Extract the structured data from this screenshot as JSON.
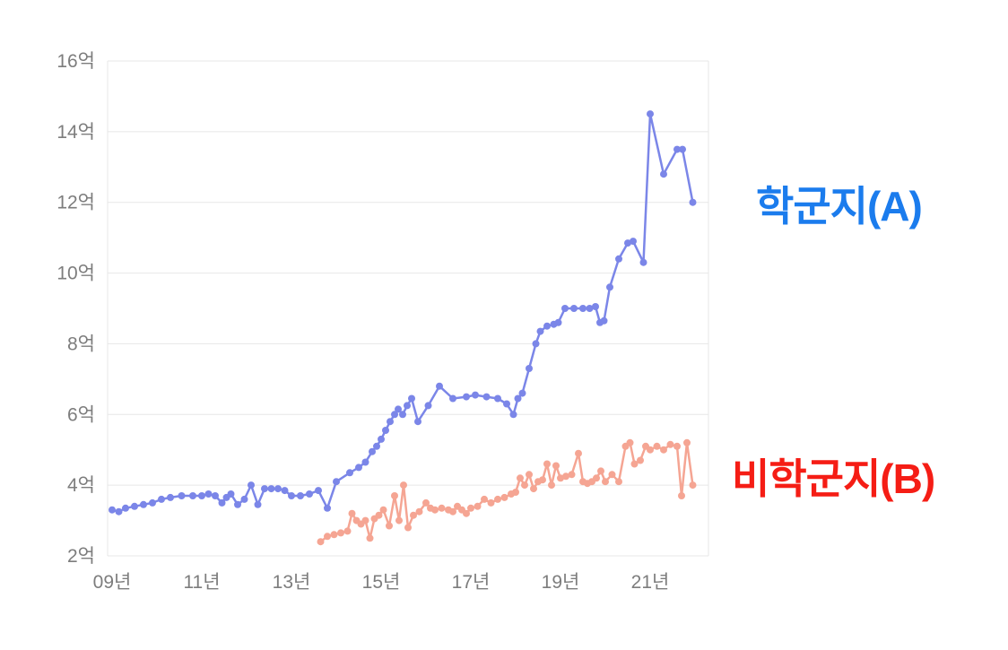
{
  "chart_data": {
    "type": "line",
    "title": "",
    "xlabel": "",
    "ylabel": "",
    "unit": "억",
    "grid": true,
    "legend_position": "right-annotations",
    "xlim": [
      2008.9,
      2022.3
    ],
    "ylim": [
      2,
      16
    ],
    "x_ticks": [
      [
        2009,
        "09년"
      ],
      [
        2011,
        "11년"
      ],
      [
        2013,
        "13년"
      ],
      [
        2015,
        "15년"
      ],
      [
        2017,
        "17년"
      ],
      [
        2019,
        "19년"
      ],
      [
        2021,
        "21년"
      ]
    ],
    "y_ticks": [
      [
        2,
        "2억"
      ],
      [
        4,
        "4억"
      ],
      [
        6,
        "6억"
      ],
      [
        8,
        "8억"
      ],
      [
        10,
        "10억"
      ],
      [
        12,
        "12억"
      ],
      [
        14,
        "14억"
      ],
      [
        16,
        "16억"
      ]
    ],
    "series": [
      {
        "name": "학군지(A)",
        "color": "#7b86e8",
        "points": [
          [
            2009.0,
            3.3
          ],
          [
            2009.15,
            3.25
          ],
          [
            2009.3,
            3.35
          ],
          [
            2009.5,
            3.4
          ],
          [
            2009.7,
            3.45
          ],
          [
            2009.9,
            3.5
          ],
          [
            2010.1,
            3.6
          ],
          [
            2010.3,
            3.65
          ],
          [
            2010.55,
            3.7
          ],
          [
            2010.8,
            3.7
          ],
          [
            2011.0,
            3.7
          ],
          [
            2011.15,
            3.75
          ],
          [
            2011.3,
            3.7
          ],
          [
            2011.45,
            3.5
          ],
          [
            2011.55,
            3.65
          ],
          [
            2011.65,
            3.75
          ],
          [
            2011.8,
            3.45
          ],
          [
            2011.95,
            3.6
          ],
          [
            2012.1,
            4.0
          ],
          [
            2012.25,
            3.45
          ],
          [
            2012.4,
            3.9
          ],
          [
            2012.55,
            3.9
          ],
          [
            2012.7,
            3.9
          ],
          [
            2012.85,
            3.85
          ],
          [
            2013.0,
            3.7
          ],
          [
            2013.2,
            3.7
          ],
          [
            2013.4,
            3.75
          ],
          [
            2013.6,
            3.85
          ],
          [
            2013.8,
            3.35
          ],
          [
            2014.0,
            4.1
          ],
          [
            2014.3,
            4.35
          ],
          [
            2014.5,
            4.5
          ],
          [
            2014.65,
            4.65
          ],
          [
            2014.8,
            4.95
          ],
          [
            2014.9,
            5.1
          ],
          [
            2015.0,
            5.3
          ],
          [
            2015.1,
            5.55
          ],
          [
            2015.2,
            5.8
          ],
          [
            2015.3,
            6.0
          ],
          [
            2015.38,
            6.15
          ],
          [
            2015.48,
            6.0
          ],
          [
            2015.58,
            6.25
          ],
          [
            2015.68,
            6.45
          ],
          [
            2015.82,
            5.8
          ],
          [
            2016.05,
            6.25
          ],
          [
            2016.3,
            6.8
          ],
          [
            2016.6,
            6.45
          ],
          [
            2016.9,
            6.5
          ],
          [
            2017.1,
            6.55
          ],
          [
            2017.35,
            6.5
          ],
          [
            2017.6,
            6.45
          ],
          [
            2017.8,
            6.3
          ],
          [
            2017.95,
            6.0
          ],
          [
            2018.05,
            6.45
          ],
          [
            2018.15,
            6.6
          ],
          [
            2018.3,
            7.3
          ],
          [
            2018.45,
            8.0
          ],
          [
            2018.55,
            8.35
          ],
          [
            2018.7,
            8.5
          ],
          [
            2018.85,
            8.55
          ],
          [
            2018.95,
            8.6
          ],
          [
            2019.1,
            9.0
          ],
          [
            2019.3,
            9.0
          ],
          [
            2019.5,
            9.0
          ],
          [
            2019.65,
            9.0
          ],
          [
            2019.78,
            9.05
          ],
          [
            2019.88,
            8.6
          ],
          [
            2019.97,
            8.65
          ],
          [
            2020.1,
            9.6
          ],
          [
            2020.3,
            10.4
          ],
          [
            2020.5,
            10.85
          ],
          [
            2020.62,
            10.9
          ],
          [
            2020.85,
            10.3
          ],
          [
            2021.0,
            14.5
          ],
          [
            2021.3,
            12.8
          ],
          [
            2021.6,
            13.5
          ],
          [
            2021.72,
            13.5
          ],
          [
            2021.95,
            12.0
          ]
        ]
      },
      {
        "name": "비학군지(B)",
        "color": "#f5a593",
        "points": [
          [
            2013.65,
            2.4
          ],
          [
            2013.8,
            2.55
          ],
          [
            2013.95,
            2.6
          ],
          [
            2014.1,
            2.65
          ],
          [
            2014.25,
            2.7
          ],
          [
            2014.35,
            3.2
          ],
          [
            2014.45,
            3.0
          ],
          [
            2014.55,
            2.9
          ],
          [
            2014.65,
            3.0
          ],
          [
            2014.75,
            2.5
          ],
          [
            2014.85,
            3.05
          ],
          [
            2014.95,
            3.15
          ],
          [
            2015.05,
            3.3
          ],
          [
            2015.18,
            2.85
          ],
          [
            2015.3,
            3.7
          ],
          [
            2015.4,
            3.0
          ],
          [
            2015.5,
            4.0
          ],
          [
            2015.6,
            2.8
          ],
          [
            2015.72,
            3.15
          ],
          [
            2015.85,
            3.25
          ],
          [
            2016.0,
            3.5
          ],
          [
            2016.1,
            3.35
          ],
          [
            2016.2,
            3.3
          ],
          [
            2016.35,
            3.35
          ],
          [
            2016.5,
            3.3
          ],
          [
            2016.6,
            3.25
          ],
          [
            2016.7,
            3.4
          ],
          [
            2016.8,
            3.3
          ],
          [
            2016.9,
            3.2
          ],
          [
            2017.0,
            3.35
          ],
          [
            2017.15,
            3.4
          ],
          [
            2017.3,
            3.6
          ],
          [
            2017.45,
            3.5
          ],
          [
            2017.6,
            3.6
          ],
          [
            2017.75,
            3.65
          ],
          [
            2017.9,
            3.75
          ],
          [
            2018.0,
            3.8
          ],
          [
            2018.1,
            4.2
          ],
          [
            2018.2,
            4.0
          ],
          [
            2018.3,
            4.3
          ],
          [
            2018.4,
            3.9
          ],
          [
            2018.5,
            4.1
          ],
          [
            2018.6,
            4.15
          ],
          [
            2018.7,
            4.6
          ],
          [
            2018.8,
            4.0
          ],
          [
            2018.9,
            4.55
          ],
          [
            2019.0,
            4.2
          ],
          [
            2019.12,
            4.25
          ],
          [
            2019.25,
            4.3
          ],
          [
            2019.4,
            4.9
          ],
          [
            2019.5,
            4.1
          ],
          [
            2019.6,
            4.05
          ],
          [
            2019.7,
            4.1
          ],
          [
            2019.8,
            4.2
          ],
          [
            2019.9,
            4.4
          ],
          [
            2020.0,
            4.1
          ],
          [
            2020.15,
            4.3
          ],
          [
            2020.3,
            4.1
          ],
          [
            2020.45,
            5.1
          ],
          [
            2020.55,
            5.2
          ],
          [
            2020.65,
            4.6
          ],
          [
            2020.78,
            4.7
          ],
          [
            2020.9,
            5.1
          ],
          [
            2021.0,
            5.0
          ],
          [
            2021.15,
            5.1
          ],
          [
            2021.3,
            5.0
          ],
          [
            2021.45,
            5.15
          ],
          [
            2021.6,
            5.1
          ],
          [
            2021.7,
            3.7
          ],
          [
            2021.82,
            5.2
          ],
          [
            2021.95,
            4.0
          ]
        ]
      }
    ],
    "annotations": [
      {
        "text": "학군지(A)",
        "color": "#1b7ced"
      },
      {
        "text": "비학군지(B)",
        "color": "#f51d15"
      }
    ],
    "colors": {
      "gridline": "#e7e7e7",
      "tick_label": "#7d7d7d",
      "background": "#ffffff"
    }
  }
}
